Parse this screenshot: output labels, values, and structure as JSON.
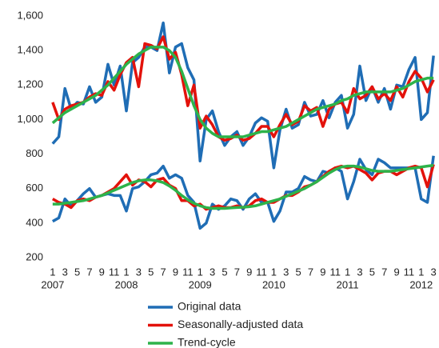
{
  "chart_data": {
    "type": "line",
    "categories": [
      "1",
      null,
      "3",
      null,
      "5",
      null,
      "7",
      null,
      "9",
      null,
      "11",
      null,
      "1",
      null,
      "3",
      null,
      "5",
      null,
      "7",
      null,
      "9",
      null,
      "11",
      null,
      "1",
      null,
      "3",
      null,
      "5",
      null,
      "7",
      null,
      "9",
      null,
      "11",
      null,
      "1",
      null,
      "3",
      null,
      "5",
      null,
      "7",
      null,
      "9",
      null,
      "11",
      null,
      "1",
      null,
      "3",
      null,
      "5",
      null,
      "7",
      null,
      "9",
      null,
      "11",
      null,
      "1",
      null,
      "3"
    ],
    "years": [
      "2007",
      "2008",
      "2009",
      "2010",
      "2011",
      "2012"
    ],
    "ylim": [
      200,
      1600
    ],
    "yticks": [
      200,
      400,
      600,
      800,
      {
        "value": 1000,
        "label": "1,000"
      },
      {
        "value": 1200,
        "label": "1,200"
      },
      {
        "value": 1400,
        "label": "1,400"
      },
      {
        "value": 1600,
        "label": "1,600"
      }
    ],
    "grid": false,
    "series": [
      {
        "name": "Original data",
        "color": "#1f6db5",
        "values": [
          860,
          900,
          1180,
          1060,
          1100,
          1090,
          1190,
          1100,
          1130,
          1320,
          1200,
          1310,
          1050,
          1330,
          1360,
          1420,
          1420,
          1400,
          1560,
          1270,
          1420,
          1440,
          1300,
          1230,
          760,
          1000,
          1050,
          930,
          850,
          900,
          930,
          850,
          900,
          980,
          1010,
          990,
          720,
          940,
          1060,
          950,
          970,
          1100,
          1020,
          1030,
          1110,
          1010,
          1100,
          1140,
          950,
          1030,
          1310,
          1110,
          1190,
          1100,
          1180,
          1060,
          1200,
          1190,
          1290,
          1360,
          1000,
          1040,
          1370
        ],
        "values_lower": [
          410,
          430,
          540,
          500,
          530,
          570,
          600,
          550,
          560,
          570,
          560,
          560,
          470,
          600,
          610,
          640,
          680,
          690,
          730,
          660,
          680,
          660,
          560,
          520,
          370,
          400,
          510,
          480,
          500,
          540,
          530,
          480,
          540,
          570,
          520,
          520,
          410,
          470,
          580,
          580,
          600,
          670,
          650,
          640,
          700,
          690,
          720,
          700,
          540,
          640,
          770,
          710,
          680,
          770,
          750,
          720,
          720,
          720,
          720,
          720,
          540,
          520,
          790
        ]
      },
      {
        "name": "Seasonally-adjusted data",
        "color": "#e3120b",
        "values": [
          1100,
          1000,
          1060,
          1080,
          1090,
          1100,
          1130,
          1150,
          1140,
          1220,
          1170,
          1260,
          1330,
          1360,
          1190,
          1440,
          1430,
          1410,
          1480,
          1350,
          1390,
          1260,
          1080,
          1200,
          950,
          1020,
          970,
          900,
          880,
          890,
          910,
          880,
          890,
          920,
          960,
          960,
          900,
          970,
          1030,
          970,
          990,
          1080,
          1050,
          1070,
          960,
          1060,
          1090,
          1100,
          1040,
          1180,
          1120,
          1140,
          1190,
          1120,
          1150,
          1110,
          1190,
          1130,
          1220,
          1280,
          1240,
          1160,
          1230
        ],
        "values_lower": [
          540,
          520,
          510,
          490,
          530,
          540,
          530,
          550,
          560,
          580,
          600,
          640,
          680,
          620,
          650,
          640,
          610,
          650,
          660,
          620,
          600,
          530,
          530,
          500,
          510,
          480,
          490,
          500,
          490,
          490,
          500,
          490,
          500,
          530,
          540,
          520,
          520,
          540,
          560,
          560,
          580,
          610,
          620,
          640,
          670,
          700,
          720,
          730,
          720,
          730,
          710,
          690,
          650,
          690,
          700,
          700,
          680,
          700,
          720,
          730,
          720,
          610,
          740
        ]
      },
      {
        "name": "Trend-cycle",
        "color": "#2db34a",
        "values": [
          980,
          1010,
          1040,
          1060,
          1080,
          1100,
          1120,
          1140,
          1170,
          1200,
          1240,
          1280,
          1320,
          1350,
          1380,
          1400,
          1420,
          1420,
          1420,
          1400,
          1360,
          1280,
          1180,
          1080,
          1000,
          950,
          920,
          900,
          900,
          900,
          900,
          900,
          910,
          920,
          930,
          930,
          940,
          950,
          960,
          980,
          1000,
          1020,
          1040,
          1060,
          1070,
          1080,
          1090,
          1110,
          1120,
          1140,
          1150,
          1160,
          1160,
          1160,
          1160,
          1160,
          1170,
          1180,
          1200,
          1220,
          1230,
          1240,
          1240
        ],
        "values_lower": [
          510,
          510,
          515,
          520,
          525,
          530,
          540,
          550,
          560,
          575,
          590,
          605,
          620,
          635,
          645,
          650,
          650,
          645,
          635,
          615,
          590,
          560,
          535,
          515,
          500,
          490,
          485,
          485,
          485,
          488,
          490,
          492,
          495,
          500,
          510,
          520,
          530,
          540,
          555,
          570,
          585,
          600,
          620,
          640,
          665,
          690,
          710,
          725,
          730,
          730,
          725,
          715,
          705,
          700,
          700,
          700,
          705,
          710,
          715,
          720,
          725,
          730,
          735
        ]
      }
    ]
  }
}
